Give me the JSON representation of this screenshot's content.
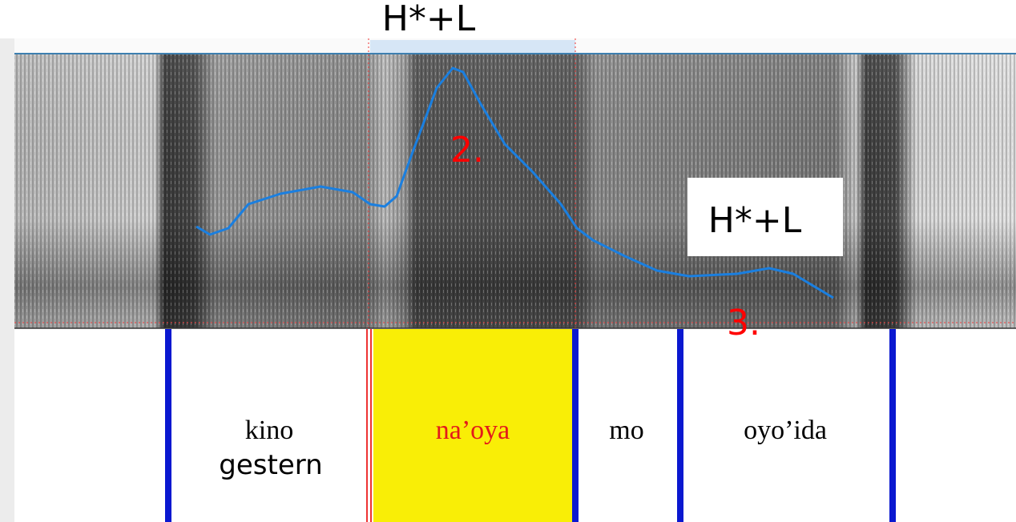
{
  "header": {
    "tone_label": "H*+L"
  },
  "spectrogram": {
    "peak_marker": "2.",
    "tone_box": "H*+L",
    "low_marker": "3."
  },
  "tier": {
    "intervals": [
      {
        "label": "kino",
        "gloss": "gestern"
      },
      {
        "label": "na’oya"
      },
      {
        "label": "mo"
      },
      {
        "label": "oyo’ida"
      }
    ]
  }
}
